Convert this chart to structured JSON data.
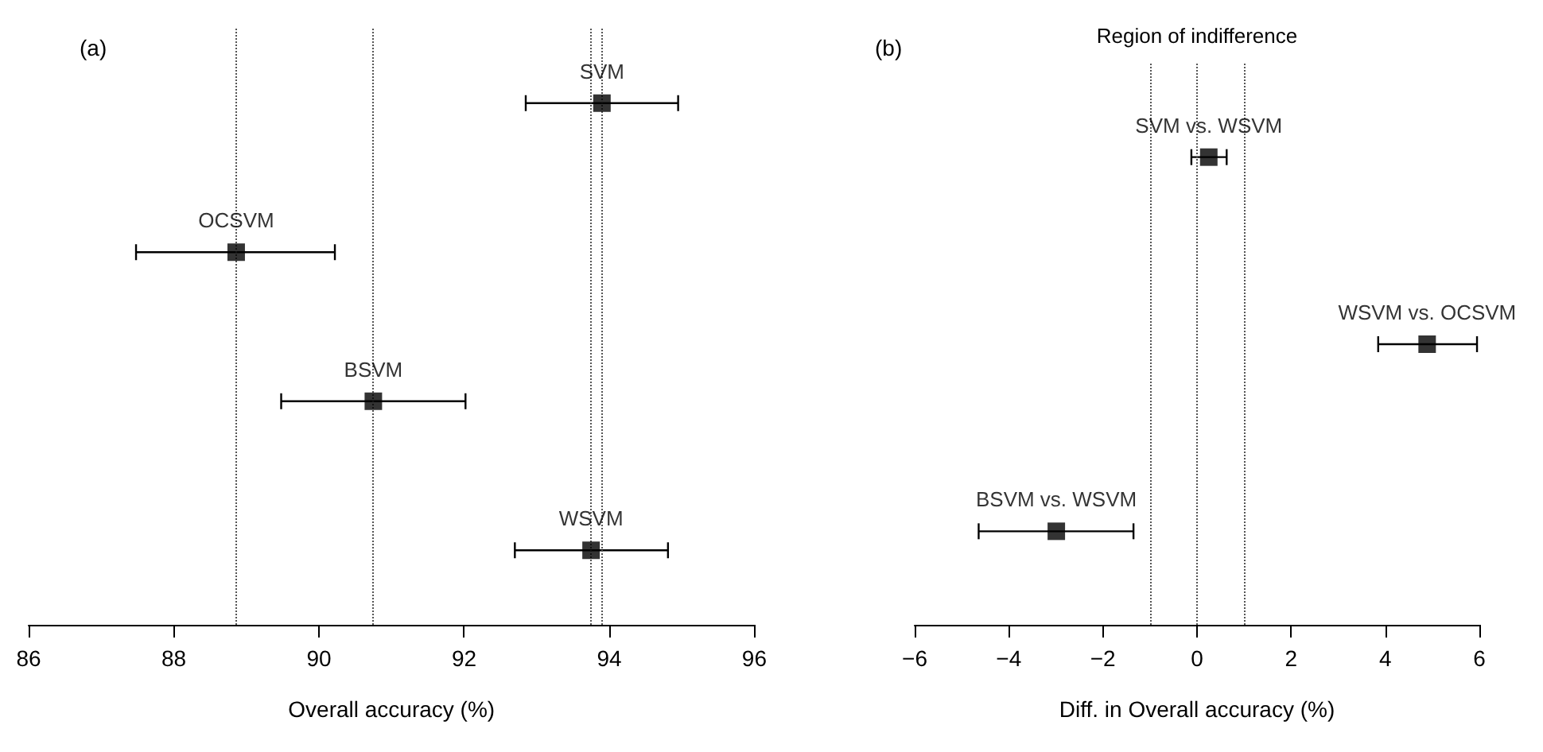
{
  "chart_data": [
    {
      "type": "scatter",
      "title": "(a)",
      "xlabel": "Overall accuracy (%)",
      "orientation": "horizontal",
      "categories": [
        null,
        null,
        null,
        null
      ],
      "series": [
        {
          "name": "SVM",
          "color": "#000000",
          "values": [
            93.9,
            null,
            null,
            null
          ],
          "errors": [
            [
              92.85,
              94.95
            ],
            null,
            null,
            null
          ]
        },
        {
          "name": "OCSVM",
          "color": "#000000",
          "values": [
            null,
            88.86,
            null,
            null
          ],
          "errors": [
            null,
            [
              87.48,
              90.22
            ],
            null,
            null
          ]
        },
        {
          "name": "BSVM",
          "color": "#000000",
          "values": [
            null,
            null,
            90.75,
            null
          ],
          "errors": [
            null,
            null,
            [
              89.48,
              92.02
            ],
            null
          ]
        },
        {
          "name": "WSVM",
          "color": "#000000",
          "values": [
            null,
            null,
            null,
            93.75
          ],
          "errors": [
            null,
            null,
            null,
            [
              92.7,
              94.81
            ]
          ]
        }
      ],
      "xlim": [
        86,
        96
      ],
      "xticks": [
        86,
        88,
        90,
        92,
        94,
        96
      ],
      "ref_lines": [
        {
          "axis": "x",
          "value": 88.86
        },
        {
          "axis": "x",
          "value": 90.75
        },
        {
          "axis": "x",
          "value": 93.75
        },
        {
          "axis": "x",
          "value": 93.9
        }
      ],
      "marker": "square",
      "grid": false,
      "legend": false,
      "tick_labels": "x"
    },
    {
      "type": "scatter",
      "title": "(b)",
      "xlabel": "Diff. in Overall accuracy (%)",
      "orientation": "horizontal",
      "categories": [
        null,
        null,
        null
      ],
      "series": [
        {
          "name": "SVM vs. WSVM",
          "color": "#000000",
          "values": [
            0.25,
            null,
            null
          ],
          "errors": [
            [
              -0.12,
              0.63
            ],
            null,
            null
          ]
        },
        {
          "name": "WSVM vs. OCSVM",
          "color": "#000000",
          "values": [
            null,
            4.89,
            null
          ],
          "errors": [
            null,
            [
              3.85,
              5.95
            ],
            null
          ]
        },
        {
          "name": "BSVM vs. WSVM",
          "color": "#000000",
          "values": [
            null,
            null,
            -2.99
          ],
          "errors": [
            null,
            null,
            [
              -4.64,
              -1.35
            ]
          ]
        }
      ],
      "xlim": [
        -6,
        6
      ],
      "xticks": [
        {
          "value": -6,
          "label": "−6"
        },
        {
          "value": -4,
          "label": "−4"
        },
        {
          "value": -2,
          "label": "−2"
        },
        0,
        2,
        4,
        6
      ],
      "ref_lines": [
        {
          "axis": "x",
          "value": -1
        },
        {
          "axis": "x",
          "value": 0
        },
        {
          "axis": "x",
          "value": 1
        }
      ],
      "annotations": [
        "Region of indifference"
      ],
      "marker": "square",
      "grid": false,
      "legend": false,
      "tick_labels": "x"
    }
  ]
}
